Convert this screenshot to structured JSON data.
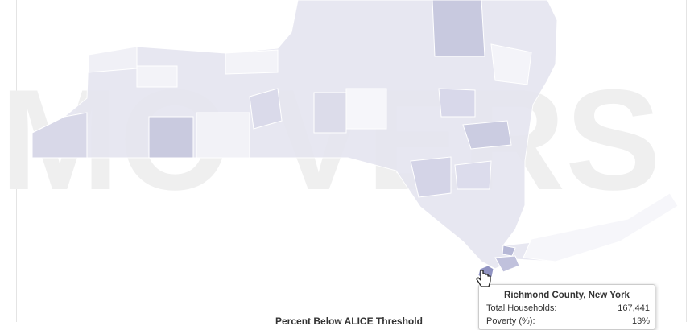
{
  "watermark": "MO VERS",
  "map": {
    "colors": {
      "light": "#ebebf3",
      "mid": "#dcdcea",
      "dark": "#c8c9df",
      "highlight": "#9093c2"
    },
    "hovered_region": "Richmond County, New York"
  },
  "legend": {
    "title": "Percent Below ALICE Threshold"
  },
  "tooltip": {
    "title": "Richmond County, New York",
    "rows": [
      {
        "label": "Total Households:",
        "value": "167,441"
      },
      {
        "label": "Poverty (%):",
        "value": "13%"
      }
    ]
  },
  "cursor": {
    "icon": "hand-pointer-icon"
  }
}
